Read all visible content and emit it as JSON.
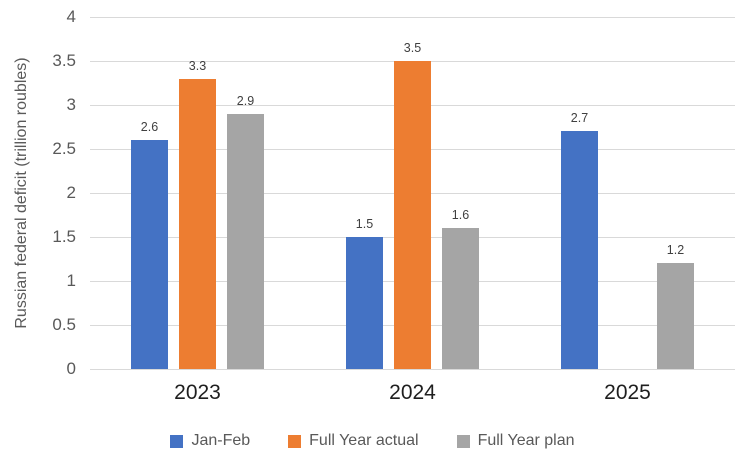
{
  "chart_data": {
    "type": "bar",
    "title": "",
    "ylabel": "Russian federal deficit (trillion roubles)",
    "xlabel": "",
    "categories": [
      "2023",
      "2024",
      "2025"
    ],
    "series": [
      {
        "name": "Jan-Feb",
        "color": "#4472C4",
        "values": [
          2.6,
          1.5,
          2.7
        ],
        "labels": [
          "2.6",
          "1.5",
          "2.7"
        ]
      },
      {
        "name": "Full Year actual",
        "color": "#ED7D31",
        "values": [
          3.3,
          3.5,
          null
        ],
        "labels": [
          "3.3",
          "3.5",
          null
        ]
      },
      {
        "name": "Full Year plan",
        "color": "#A5A5A5",
        "values": [
          2.9,
          1.6,
          1.2
        ],
        "labels": [
          "2.9",
          "1.6",
          "1.2"
        ]
      }
    ],
    "ylim": [
      0,
      4
    ],
    "yticks": [
      "0",
      "0.5",
      "1",
      "1.5",
      "2",
      "2.5",
      "3",
      "3.5",
      "4"
    ],
    "grid": true,
    "gridline_color": "#D9D9D9",
    "legend_position": "bottom"
  }
}
